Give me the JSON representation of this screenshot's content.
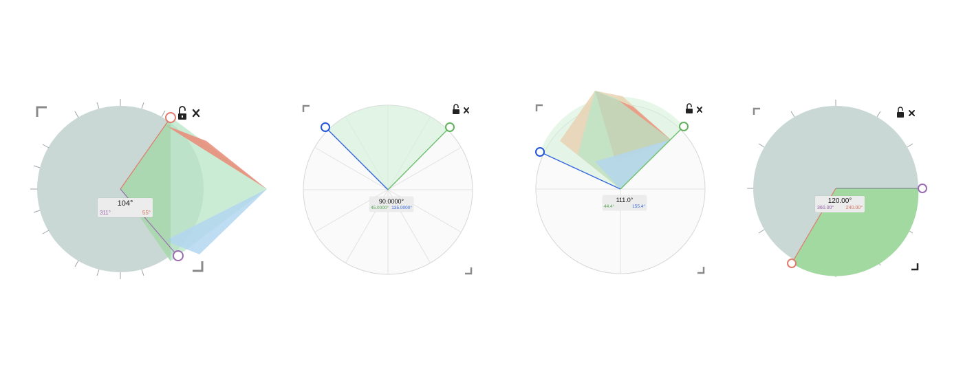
{
  "colors": {
    "disk_gray": "#c9d8d4",
    "wedge_green": "#b8e6c7",
    "wedge_red": "#e8907c",
    "wedge_blue": "#b3d6f0",
    "handle_red": "#e07a6a",
    "handle_purple": "#9b6bb0",
    "handle_blue": "#2255d6",
    "handle_green": "#5fb25a",
    "fill_green": "#a2d9a0",
    "ray_green": "#6cbf6a",
    "ray_blue": "#3366dd",
    "ray_gray": "#7f8c8a",
    "corner_gray": "#8a8a8a",
    "corner_dark": "#222222",
    "text_purple": "#8d5ea3",
    "text_red": "#d0705f",
    "text_green": "#55a353",
    "text_blue": "#3366dd"
  },
  "icons": {
    "lock": "unlocked-padlock-icon",
    "close": "close-x-icon",
    "corner": "corner-bracket-icon"
  },
  "protractors": [
    {
      "angle": "104°",
      "left_value": "311°",
      "right_value": "55°"
    },
    {
      "angle": "90.0000°",
      "left_value": "45.0000°",
      "right_value": "135.0000°"
    },
    {
      "angle": "111.0°",
      "left_value": "44.4°",
      "right_value": "155.4°"
    },
    {
      "angle": "120.00°",
      "left_value": "360.00°",
      "right_value": "240.00°"
    }
  ]
}
